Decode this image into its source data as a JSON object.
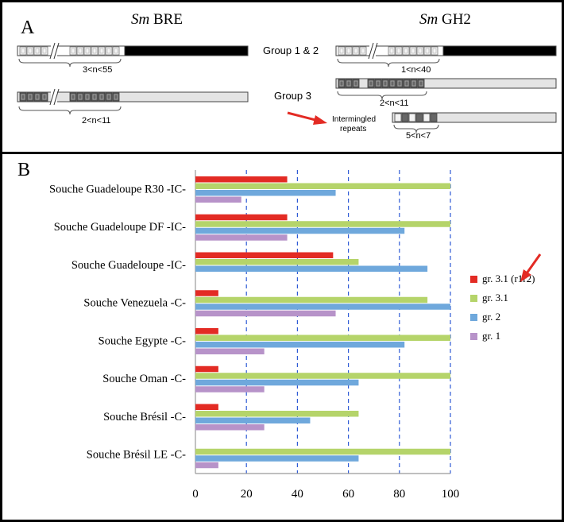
{
  "panel_a": {
    "label": "A",
    "bre_title_em": "Sm",
    "bre_title_rest": " BRE",
    "gh2_title_em": "Sm",
    "gh2_title_rest": " GH2",
    "group12_label": "Group 1 & 2",
    "group3_label": "Group 3",
    "intermingled_label_line1": "Intermingled",
    "intermingled_label_line2": "repeats",
    "bre_range_1": "3<n<55",
    "bre_range_2": "2<n<11",
    "gh2_range_1": "1<n<40",
    "gh2_range_2": "2<n<11",
    "gh2_range_3": "5<n<7",
    "arrow_color": "#e32b24"
  },
  "panel_b": {
    "label": "B"
  },
  "chart_data": {
    "type": "bar",
    "orientation": "horizontal",
    "categories": [
      "Souche Guadeloupe R30  -IC-",
      "Souche Guadeloupe DF -IC-",
      "Souche Guadeloupe  -IC-",
      "Souche Venezuela  -C-",
      "Souche Egypte  -C-",
      "Souche Oman  -C-",
      "Souche Brésil  -C-",
      "Souche Brésil LE  -C-"
    ],
    "series": [
      {
        "name": "gr. 3.1 (r1r2)",
        "color": "#e32b24",
        "values": [
          36,
          36,
          54,
          9,
          9,
          9,
          9,
          0
        ]
      },
      {
        "name": "gr. 3.1",
        "color": "#b5d46a",
        "values": [
          100,
          100,
          64,
          91,
          100,
          100,
          64,
          100
        ]
      },
      {
        "name": "gr. 2",
        "color": "#6fa8dc",
        "values": [
          55,
          82,
          91,
          100,
          82,
          64,
          45,
          64
        ]
      },
      {
        "name": "gr. 1",
        "color": "#b793c9",
        "values": [
          18,
          36,
          0,
          55,
          27,
          27,
          27,
          9
        ]
      }
    ],
    "xlim": [
      0,
      100
    ],
    "xticks": [
      "0",
      "20",
      "40",
      "60",
      "80",
      "100"
    ],
    "grid": "vertical dashed",
    "legend_position": "right",
    "legend_arrow_color": "#e32b24"
  }
}
